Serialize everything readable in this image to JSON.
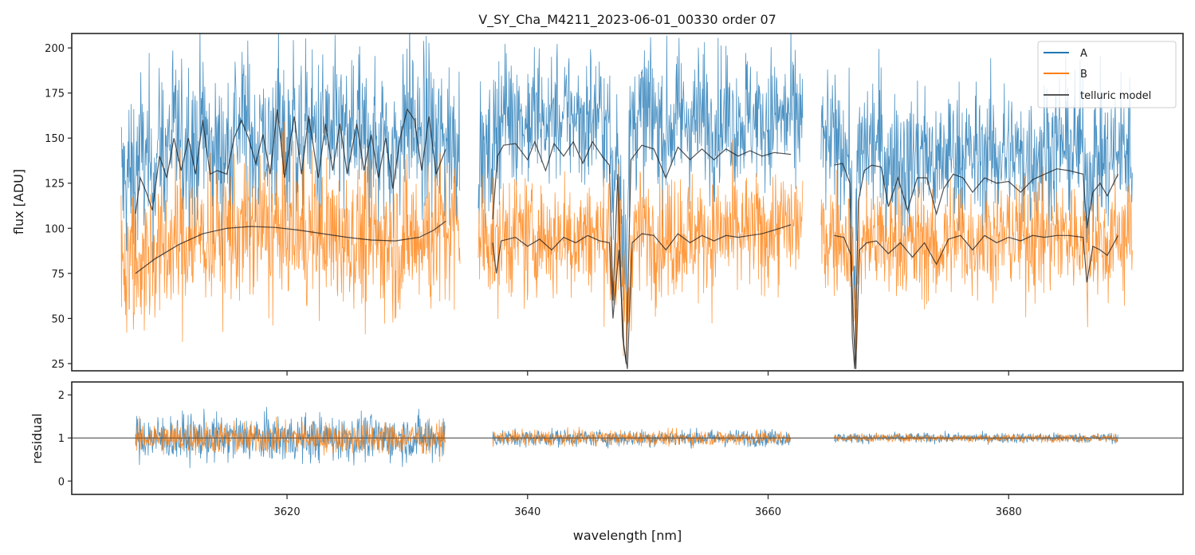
{
  "chart_data": [
    {
      "type": "line",
      "panel": "flux",
      "title": "V_SY_Cha_M4211_2023-06-01_00330  order 07",
      "xlabel": "",
      "ylabel": "flux [ADU]",
      "xlim": [
        3602.1,
        3694.5
      ],
      "ylim": [
        21,
        208
      ],
      "yticks": [
        25,
        50,
        75,
        100,
        125,
        150,
        175,
        200
      ],
      "ytick_labels": [
        "25",
        "50",
        "75",
        "100",
        "125",
        "150",
        "175",
        "200"
      ],
      "xticks": [
        3620,
        3640,
        3660,
        3680
      ],
      "grid": false,
      "legend": {
        "position": "top-right",
        "entries": [
          {
            "label": "A",
            "color": "#1f77b4"
          },
          {
            "label": "B",
            "color": "#ff7f0e"
          },
          {
            "label": "telluric model",
            "color": "#404040"
          }
        ]
      },
      "segments": [
        {
          "x_range": [
            3606.2,
            3634.4
          ],
          "model_x_range": [
            3607.4,
            3633.2
          ]
        },
        {
          "x_range": [
            3635.9,
            3662.9
          ],
          "model_x_range": [
            3637.1,
            3661.9
          ]
        },
        {
          "x_range": [
            3664.4,
            3690.3
          ],
          "model_x_range": [
            3665.5,
            3689.1
          ]
        }
      ],
      "series": [
        {
          "name": "A",
          "color": "#1f77b4",
          "mean_level": [
            148,
            160,
            150
          ],
          "noise_amplitude": [
            55,
            45,
            45
          ]
        },
        {
          "name": "B",
          "color": "#ff7f0e",
          "mean_level": [
            95,
            97,
            96
          ],
          "noise_amplitude": [
            50,
            40,
            38
          ]
        },
        {
          "name": "telluric model A",
          "color": "#404040",
          "points": [
            [
              [
                3607.4,
                108
              ],
              [
                3607.8,
                128
              ],
              [
                3608.3,
                120
              ],
              [
                3608.8,
                110
              ],
              [
                3609.4,
                140
              ],
              [
                3610.0,
                128
              ],
              [
                3610.6,
                150
              ],
              [
                3611.2,
                132
              ],
              [
                3611.8,
                150
              ],
              [
                3612.4,
                130
              ],
              [
                3613.0,
                160
              ],
              [
                3613.6,
                130
              ],
              [
                3614.2,
                132
              ],
              [
                3615.0,
                130
              ],
              [
                3615.6,
                150
              ],
              [
                3616.2,
                160
              ],
              [
                3616.8,
                150
              ],
              [
                3617.4,
                136
              ],
              [
                3618.0,
                152
              ],
              [
                3618.6,
                130
              ],
              [
                3619.2,
                166
              ],
              [
                3619.8,
                128
              ],
              [
                3620.6,
                162
              ],
              [
                3621.2,
                130
              ],
              [
                3621.8,
                162
              ],
              [
                3622.6,
                128
              ],
              [
                3623.2,
                158
              ],
              [
                3623.8,
                132
              ],
              [
                3624.4,
                158
              ],
              [
                3625.0,
                130
              ],
              [
                3625.8,
                158
              ],
              [
                3626.4,
                132
              ],
              [
                3627.0,
                152
              ],
              [
                3627.6,
                128
              ],
              [
                3628.2,
                150
              ],
              [
                3628.8,
                122
              ],
              [
                3629.4,
                150
              ],
              [
                3630.0,
                166
              ],
              [
                3630.6,
                160
              ],
              [
                3631.2,
                132
              ],
              [
                3631.8,
                162
              ],
              [
                3632.4,
                130
              ],
              [
                3633.2,
                144
              ]
            ],
            [
              [
                3637.1,
                105
              ],
              [
                3637.5,
                140
              ],
              [
                3638.0,
                146
              ],
              [
                3639.0,
                147
              ],
              [
                3640.0,
                138
              ],
              [
                3640.6,
                148
              ],
              [
                3641.5,
                132
              ],
              [
                3642.2,
                147
              ],
              [
                3643.0,
                140
              ],
              [
                3643.8,
                148
              ],
              [
                3644.6,
                136
              ],
              [
                3645.4,
                148
              ],
              [
                3646.2,
                140
              ],
              [
                3646.8,
                135
              ],
              [
                3647.1,
                60
              ],
              [
                3647.5,
                130
              ],
              [
                3647.9,
                40
              ],
              [
                3648.2,
                25
              ],
              [
                3648.6,
                138
              ],
              [
                3649.5,
                146
              ],
              [
                3650.5,
                144
              ],
              [
                3651.5,
                128
              ],
              [
                3652.5,
                145
              ],
              [
                3653.5,
                138
              ],
              [
                3654.5,
                144
              ],
              [
                3655.5,
                138
              ],
              [
                3656.5,
                144
              ],
              [
                3657.5,
                140
              ],
              [
                3658.5,
                143
              ],
              [
                3659.5,
                140
              ],
              [
                3660.5,
                142
              ],
              [
                3661.9,
                141
              ]
            ],
            [
              [
                3665.5,
                135
              ],
              [
                3666.2,
                136
              ],
              [
                3666.8,
                125
              ],
              [
                3667.0,
                40
              ],
              [
                3667.2,
                22
              ],
              [
                3667.5,
                115
              ],
              [
                3668.0,
                132
              ],
              [
                3668.6,
                135
              ],
              [
                3669.4,
                134
              ],
              [
                3670.0,
                112
              ],
              [
                3670.8,
                128
              ],
              [
                3671.6,
                110
              ],
              [
                3672.4,
                128
              ],
              [
                3673.2,
                128
              ],
              [
                3674.0,
                108
              ],
              [
                3674.6,
                122
              ],
              [
                3675.4,
                130
              ],
              [
                3676.2,
                128
              ],
              [
                3677.0,
                120
              ],
              [
                3678.0,
                128
              ],
              [
                3679.0,
                125
              ],
              [
                3680.0,
                126
              ],
              [
                3681.0,
                120
              ],
              [
                3682.0,
                127
              ],
              [
                3683.0,
                130
              ],
              [
                3684.0,
                133
              ],
              [
                3685.0,
                132
              ],
              [
                3686.2,
                130
              ],
              [
                3686.5,
                100
              ],
              [
                3687.0,
                120
              ],
              [
                3687.6,
                125
              ],
              [
                3688.2,
                118
              ],
              [
                3689.1,
                130
              ]
            ]
          ]
        },
        {
          "name": "telluric model B",
          "color": "#404040",
          "points": [
            [
              [
                3607.4,
                75
              ],
              [
                3609.0,
                83
              ],
              [
                3611.0,
                91
              ],
              [
                3613.0,
                97
              ],
              [
                3615.0,
                100
              ],
              [
                3617.0,
                101
              ],
              [
                3619.0,
                100.5
              ],
              [
                3621.0,
                99
              ],
              [
                3623.0,
                97
              ],
              [
                3625.0,
                95
              ],
              [
                3627.0,
                93.5
              ],
              [
                3629.0,
                93
              ],
              [
                3631.0,
                95
              ],
              [
                3632.2,
                99
              ],
              [
                3633.2,
                104
              ]
            ],
            [
              [
                3637.1,
                92
              ],
              [
                3637.4,
                75
              ],
              [
                3637.8,
                93
              ],
              [
                3639.0,
                95
              ],
              [
                3640.0,
                90
              ],
              [
                3641.0,
                94
              ],
              [
                3642.0,
                88
              ],
              [
                3643.0,
                95
              ],
              [
                3644.0,
                92
              ],
              [
                3645.0,
                96
              ],
              [
                3646.0,
                93
              ],
              [
                3646.8,
                92
              ],
              [
                3647.1,
                50
              ],
              [
                3647.6,
                88
              ],
              [
                3648.0,
                35
              ],
              [
                3648.3,
                22
              ],
              [
                3648.7,
                92
              ],
              [
                3649.5,
                97
              ],
              [
                3650.5,
                96
              ],
              [
                3651.5,
                88
              ],
              [
                3652.5,
                97
              ],
              [
                3653.5,
                92
              ],
              [
                3654.5,
                96
              ],
              [
                3655.5,
                93
              ],
              [
                3656.5,
                96
              ],
              [
                3657.5,
                95
              ],
              [
                3658.5,
                96
              ],
              [
                3659.5,
                97
              ],
              [
                3660.5,
                99
              ],
              [
                3661.9,
                102
              ]
            ],
            [
              [
                3665.5,
                96
              ],
              [
                3666.3,
                95
              ],
              [
                3666.9,
                85
              ],
              [
                3667.1,
                45
              ],
              [
                3667.3,
                22
              ],
              [
                3667.6,
                88
              ],
              [
                3668.2,
                92
              ],
              [
                3669.0,
                93
              ],
              [
                3670.0,
                86
              ],
              [
                3671.0,
                92
              ],
              [
                3672.0,
                84
              ],
              [
                3673.0,
                92
              ],
              [
                3674.0,
                80
              ],
              [
                3675.0,
                94
              ],
              [
                3676.0,
                96
              ],
              [
                3677.0,
                88
              ],
              [
                3678.0,
                96
              ],
              [
                3679.0,
                92
              ],
              [
                3680.0,
                95
              ],
              [
                3681.0,
                93
              ],
              [
                3682.0,
                96
              ],
              [
                3683.0,
                95
              ],
              [
                3684.0,
                96
              ],
              [
                3685.0,
                96
              ],
              [
                3686.2,
                95
              ],
              [
                3686.5,
                70
              ],
              [
                3687.0,
                90
              ],
              [
                3687.6,
                88
              ],
              [
                3688.2,
                85
              ],
              [
                3689.1,
                96
              ]
            ]
          ]
        }
      ]
    },
    {
      "type": "line",
      "panel": "residual",
      "xlabel": "wavelength [nm]",
      "ylabel": "residual",
      "xlim": [
        3602.1,
        3694.5
      ],
      "ylim": [
        -0.31,
        2.3
      ],
      "yticks": [
        0,
        1,
        2
      ],
      "ytick_labels": [
        "0",
        "1",
        "2"
      ],
      "xticks": [
        3620,
        3640,
        3660,
        3680
      ],
      "xtick_labels": [
        "3620",
        "3640",
        "3660",
        "3680"
      ],
      "grid": false,
      "reference_line": 1,
      "segments": [
        {
          "x_range": [
            3607.4,
            3633.2
          ]
        },
        {
          "x_range": [
            3637.1,
            3661.9
          ]
        },
        {
          "x_range": [
            3665.5,
            3689.1
          ]
        }
      ],
      "series": [
        {
          "name": "A",
          "color": "#1f77b4",
          "center": 1,
          "spread": [
            0.55,
            0.2,
            0.12
          ]
        },
        {
          "name": "B",
          "color": "#ff7f0e",
          "center": 1,
          "spread": [
            0.38,
            0.18,
            0.1
          ]
        }
      ]
    }
  ]
}
